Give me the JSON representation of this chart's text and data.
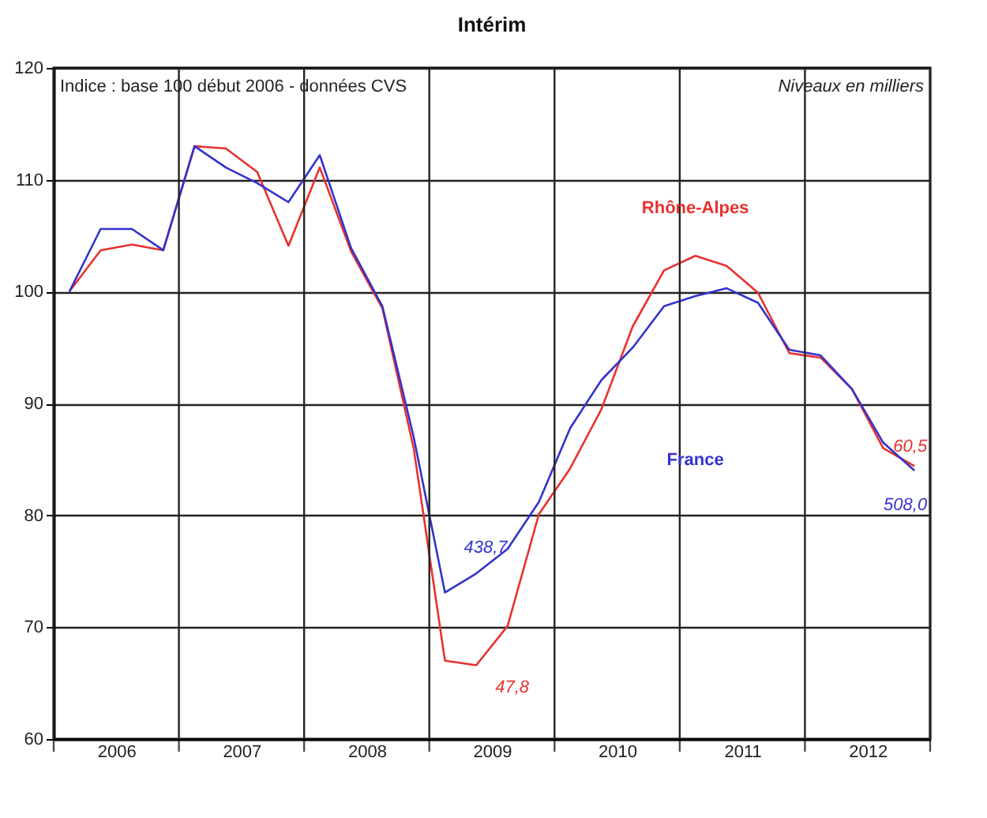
{
  "chart_data": {
    "type": "line",
    "title": "Intérim",
    "x": [
      2006.125,
      2006.375,
      2006.625,
      2006.875,
      2007.125,
      2007.375,
      2007.625,
      2007.875,
      2008.125,
      2008.375,
      2008.625,
      2008.875,
      2009.125,
      2009.375,
      2009.625,
      2009.875,
      2010.125,
      2010.375,
      2010.625,
      2010.875,
      2011.125,
      2011.375,
      2011.625,
      2011.875,
      2012.125,
      2012.375,
      2012.625,
      2012.875
    ],
    "series": [
      {
        "name": "Rhône-Alpes",
        "color": "#e8312f",
        "values": [
          100,
          103.7,
          104.2,
          103.7,
          113.0,
          112.8,
          110.7,
          104.1,
          111.1,
          103.6,
          98.5,
          86,
          67.0,
          66.6,
          70.1,
          80.1,
          84.2,
          89.5,
          96.9,
          101.9,
          103.2,
          102.3,
          99.9,
          94.5,
          94.1,
          91.3,
          86,
          84.4
        ]
      },
      {
        "name": "France",
        "color": "#3333cc",
        "values": [
          100,
          105.6,
          105.6,
          103.7,
          113.0,
          111.1,
          109.7,
          108.0,
          112.2,
          103.9,
          98.7,
          87,
          73.1,
          74.8,
          77.0,
          81.2,
          87.8,
          92.1,
          95.0,
          98.7,
          99.6,
          100.3,
          99.0,
          94.8,
          94.3,
          91.3,
          86.5,
          84.0
        ]
      }
    ],
    "annotations": [
      "Indice : base 100 début 2006 - données CVS",
      "Niveaux en milliers",
      {
        "text": "438,7",
        "x": 2009.125,
        "y": 73.1
      },
      {
        "text": "47,8",
        "x": 2009.375,
        "y": 66.6
      },
      {
        "text": "60,5",
        "x": 2012.875,
        "y": 84.4
      },
      {
        "text": "508,0",
        "x": 2012.875,
        "y": 84.0
      }
    ],
    "xlim": [
      2006,
      2013
    ],
    "xticks": [
      {
        "value": 2006,
        "label": null
      },
      {
        "value": 2006.5,
        "label": "2006"
      },
      {
        "value": 2007,
        "label": null
      },
      {
        "value": 2007.5,
        "label": "2007"
      },
      {
        "value": 2008,
        "label": null
      },
      {
        "value": 2008.5,
        "label": "2008"
      },
      {
        "value": 2009,
        "label": null
      },
      {
        "value": 2009.5,
        "label": "2009"
      },
      {
        "value": 2010,
        "label": null
      },
      {
        "value": 2010.5,
        "label": "2010"
      },
      {
        "value": 2011,
        "label": null
      },
      {
        "value": 2011.5,
        "label": "2011"
      },
      {
        "value": 2012,
        "label": null
      },
      {
        "value": 2012.5,
        "label": "2012"
      },
      {
        "value": 2013,
        "label": null
      }
    ],
    "ylim": [
      60,
      120
    ],
    "yticks": [
      60,
      70,
      80,
      90,
      100,
      110,
      120
    ],
    "grid": true,
    "legend": false,
    "marker": "none",
    "line_style": "solid"
  }
}
